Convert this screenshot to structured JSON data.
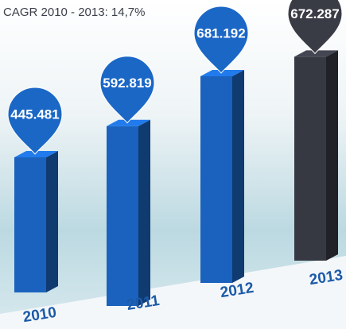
{
  "chart_data": {
    "type": "bar3d",
    "title": "CAGR 2010 - 2013: 14,7%",
    "categories": [
      "2010",
      "2011",
      "2012",
      "2013"
    ],
    "values": [
      445481,
      592819,
      681192,
      672287
    ],
    "value_labels": [
      "445.481",
      "592.819",
      "681.192",
      "672.287"
    ],
    "colors": [
      "#1a62bd",
      "#1a62bd",
      "#1a62bd",
      "#363842"
    ]
  }
}
